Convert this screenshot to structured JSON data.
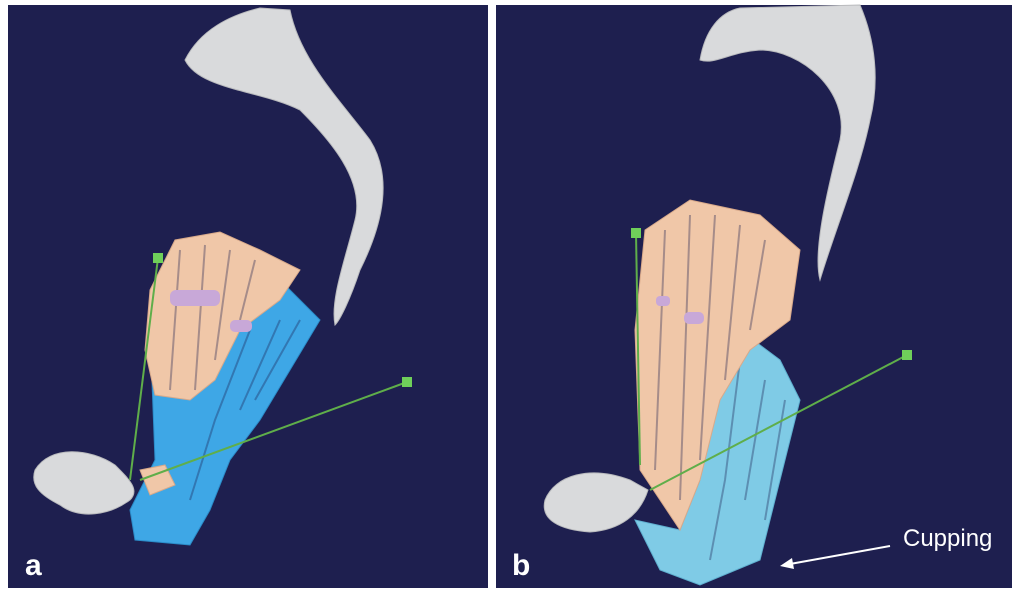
{
  "panels": [
    {
      "label": "a"
    },
    {
      "label": "b",
      "annotation": "Cupping"
    }
  ]
}
